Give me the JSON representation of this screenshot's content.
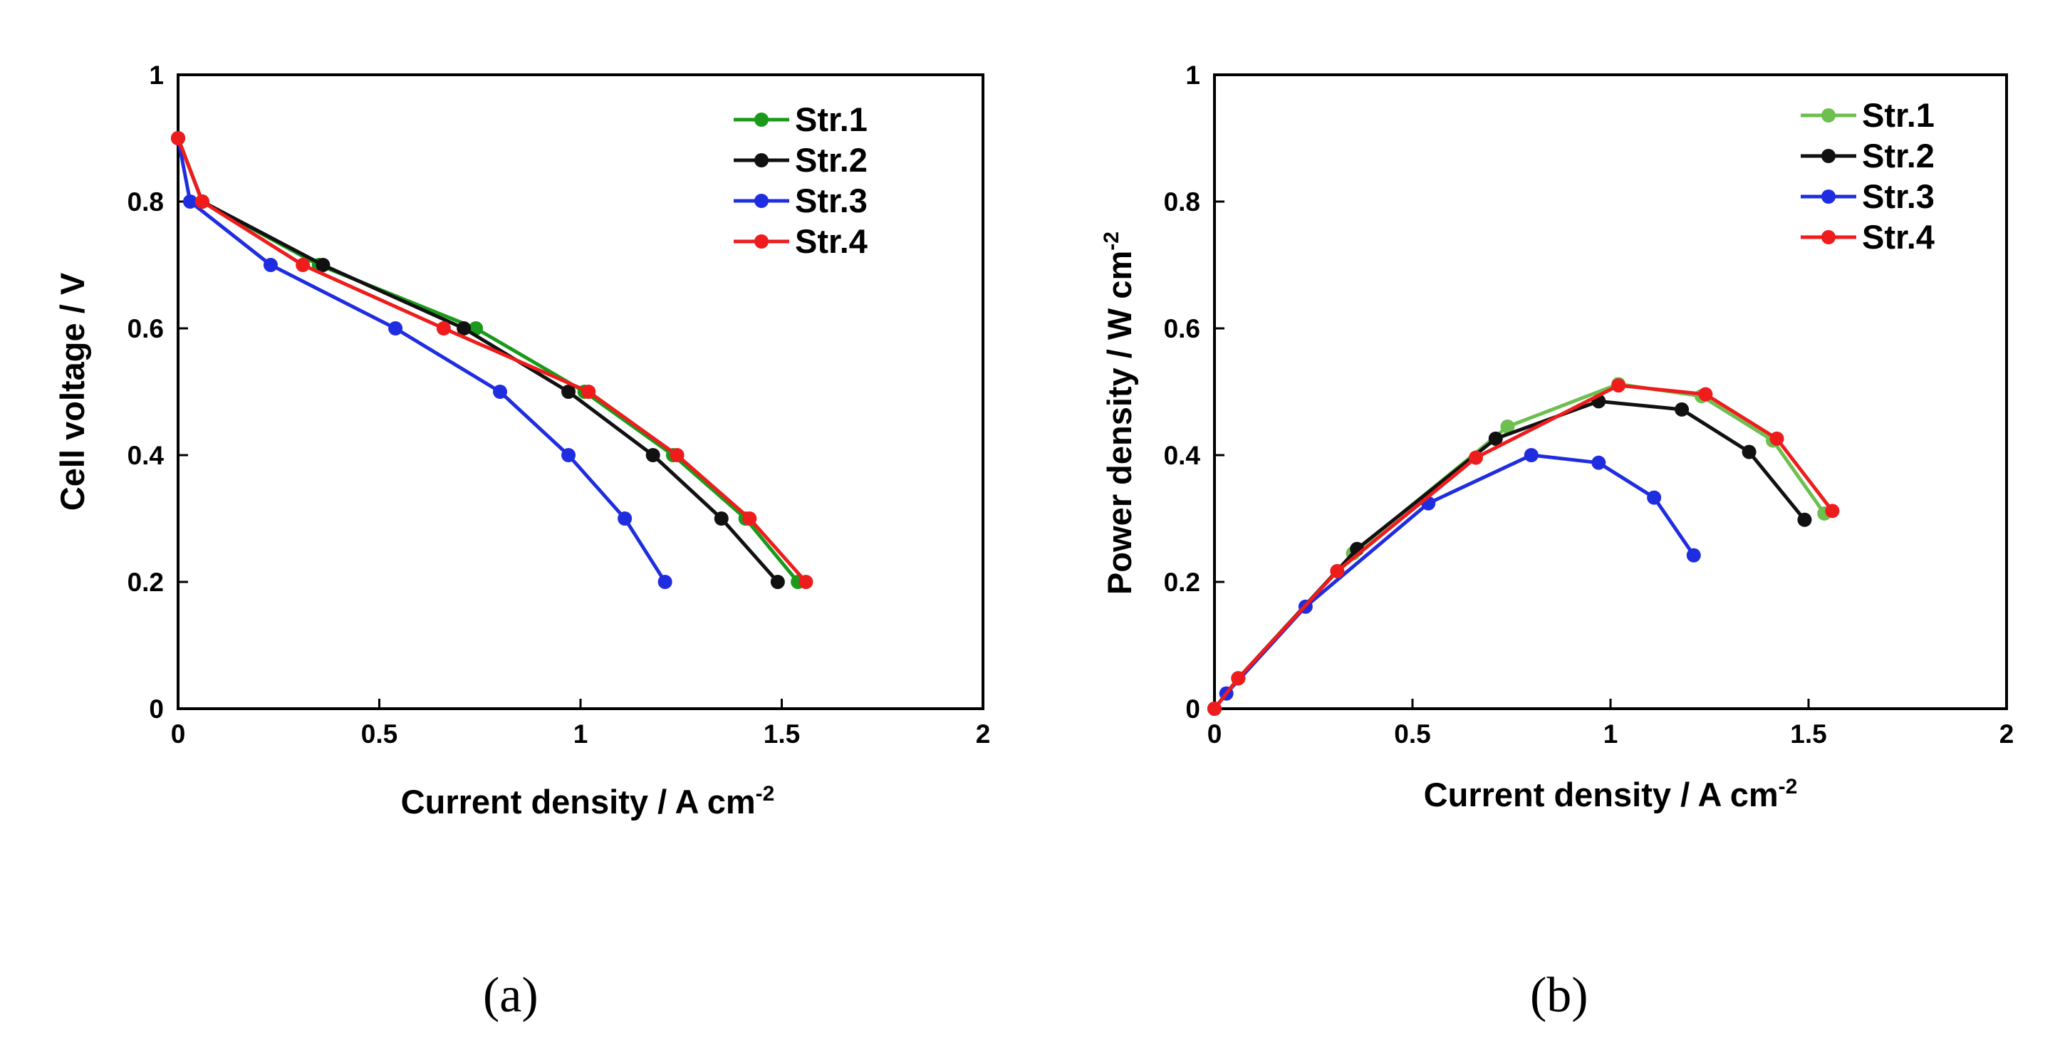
{
  "chart_data": [
    {
      "type": "line",
      "panel": "a",
      "caption": "(a)",
      "xlabel": "Current density / A cm",
      "xlabel_sup": "-2",
      "ylabel": "Cell voltage  / V",
      "ylabel_sup": "",
      "xlim": [
        0,
        2
      ],
      "ylim": [
        0,
        1
      ],
      "xticks": [
        "0",
        "0.5",
        "1",
        "1.5",
        "2"
      ],
      "yticks": [
        "0",
        "0.2",
        "0.4",
        "0.6",
        "0.8",
        "1"
      ],
      "legend_position": "top-right",
      "series": [
        {
          "name": "Str.1",
          "color": "#1a9a1a",
          "x": [
            0,
            0.06,
            0.35,
            0.74,
            1.01,
            1.23,
            1.41,
            1.54
          ],
          "y": [
            0.9,
            0.8,
            0.7,
            0.6,
            0.5,
            0.4,
            0.3,
            0.2
          ]
        },
        {
          "name": "Str.2",
          "color": "#111111",
          "x": [
            0,
            0.06,
            0.36,
            0.71,
            0.97,
            1.18,
            1.35,
            1.49
          ],
          "y": [
            0.9,
            0.8,
            0.7,
            0.6,
            0.5,
            0.4,
            0.3,
            0.2
          ]
        },
        {
          "name": "Str.3",
          "color": "#1f2de0",
          "x": [
            0,
            0.03,
            0.23,
            0.54,
            0.8,
            0.97,
            1.11,
            1.21
          ],
          "y": [
            0.9,
            0.8,
            0.7,
            0.6,
            0.5,
            0.4,
            0.3,
            0.2
          ]
        },
        {
          "name": "Str.4",
          "color": "#ee1c1c",
          "x": [
            0,
            0.06,
            0.31,
            0.66,
            1.02,
            1.24,
            1.42,
            1.56
          ],
          "y": [
            0.9,
            0.8,
            0.7,
            0.6,
            0.5,
            0.4,
            0.3,
            0.2
          ]
        }
      ]
    },
    {
      "type": "line",
      "panel": "b",
      "caption": "(b)",
      "xlabel": "Current density / A cm",
      "xlabel_sup": "-2",
      "ylabel": "Power density / W cm",
      "ylabel_sup": "-2",
      "xlim": [
        0,
        2
      ],
      "ylim": [
        0,
        1
      ],
      "xticks": [
        "0",
        "0.5",
        "1",
        "1.5",
        "2"
      ],
      "yticks": [
        "0",
        "0.2",
        "0.4",
        "0.6",
        "0.8",
        "1"
      ],
      "legend_position": "top-right",
      "series": [
        {
          "name": "Str.1",
          "color": "#6dbf4f",
          "x": [
            0,
            0.06,
            0.35,
            0.74,
            1.02,
            1.23,
            1.41,
            1.54
          ],
          "y": [
            0,
            0.048,
            0.245,
            0.445,
            0.512,
            0.493,
            0.423,
            0.308
          ]
        },
        {
          "name": "Str.2",
          "color": "#111111",
          "x": [
            0,
            0.06,
            0.36,
            0.71,
            0.97,
            1.18,
            1.35,
            1.49
          ],
          "y": [
            0,
            0.048,
            0.252,
            0.426,
            0.485,
            0.472,
            0.405,
            0.298
          ]
        },
        {
          "name": "Str.3",
          "color": "#1f2de0",
          "x": [
            0,
            0.03,
            0.23,
            0.54,
            0.8,
            0.97,
            1.11,
            1.21
          ],
          "y": [
            0,
            0.024,
            0.161,
            0.324,
            0.4,
            0.388,
            0.333,
            0.242
          ]
        },
        {
          "name": "Str.4",
          "color": "#ee1c1c",
          "x": [
            0,
            0.06,
            0.31,
            0.66,
            1.02,
            1.24,
            1.42,
            1.56
          ],
          "y": [
            0,
            0.048,
            0.217,
            0.396,
            0.51,
            0.496,
            0.426,
            0.312
          ]
        }
      ]
    }
  ]
}
